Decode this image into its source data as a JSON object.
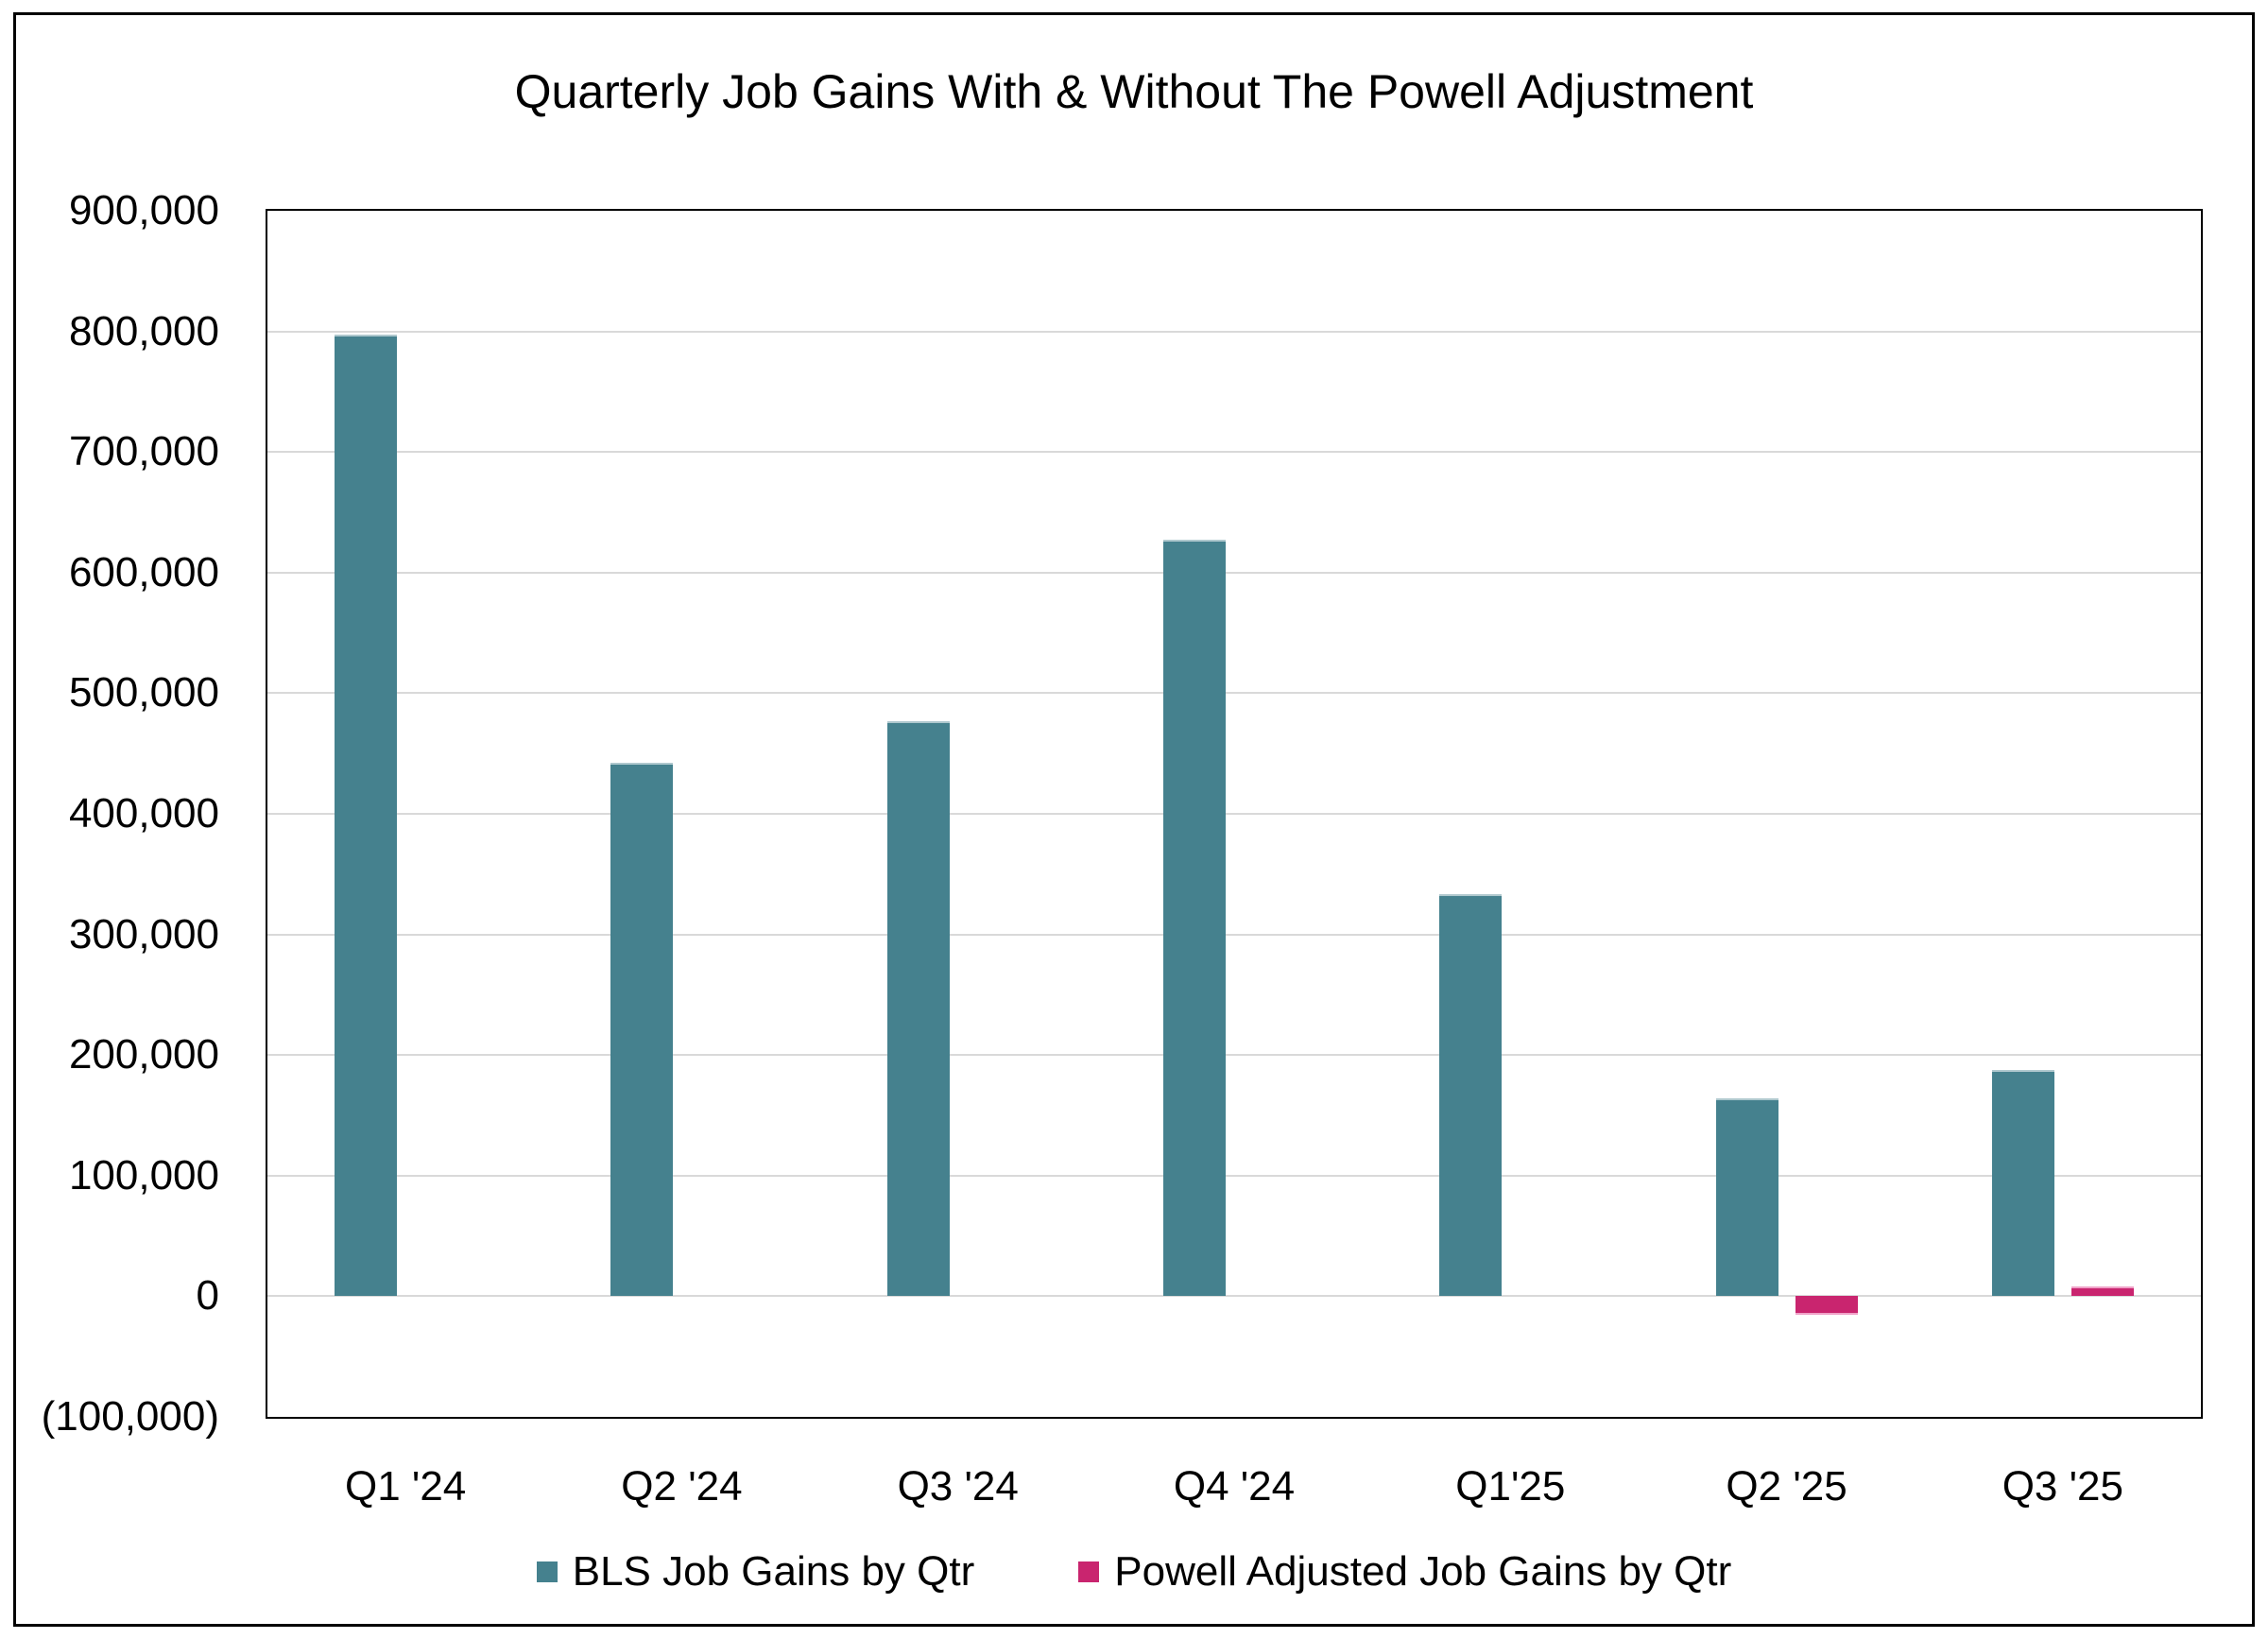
{
  "chart_data": {
    "type": "bar",
    "title": "Quarterly Job Gains With & Without The Powell Adjustment",
    "categories": [
      "Q1 '24",
      "Q2 '24",
      "Q3 '24",
      "Q4 '24",
      "Q1'25",
      "Q2 '25",
      "Q3 '25"
    ],
    "series": [
      {
        "name": "BLS Job Gains by Qtr",
        "color": "#45818E",
        "edge_color": "#AFC8CE",
        "values": [
          797000,
          442000,
          477000,
          627000,
          333000,
          164000,
          188000
        ]
      },
      {
        "name": "Powell Adjusted Job Gains by Qtr",
        "color": "#C9256F",
        "edge_color": "#F0A2C8",
        "values": [
          0,
          0,
          0,
          0,
          0,
          -15000,
          8000
        ]
      }
    ],
    "xlabel": "",
    "ylabel": "",
    "ylim": [
      -100000,
      900000
    ],
    "ytick_step": 100000,
    "ytick_labels_top_to_bottom": [
      "900,000",
      "800,000",
      "700,000",
      "600,000",
      "500,000",
      "400,000",
      "300,000",
      "200,000",
      "100,000",
      "0",
      "(100,000)"
    ],
    "grid": true,
    "gridline_color": "#D9D9D9",
    "plot_border_color": "#000000",
    "outer_border_color": "#000000",
    "text_color": "#000000",
    "background_color": "#FFFFFF",
    "legend_position": "bottom"
  }
}
